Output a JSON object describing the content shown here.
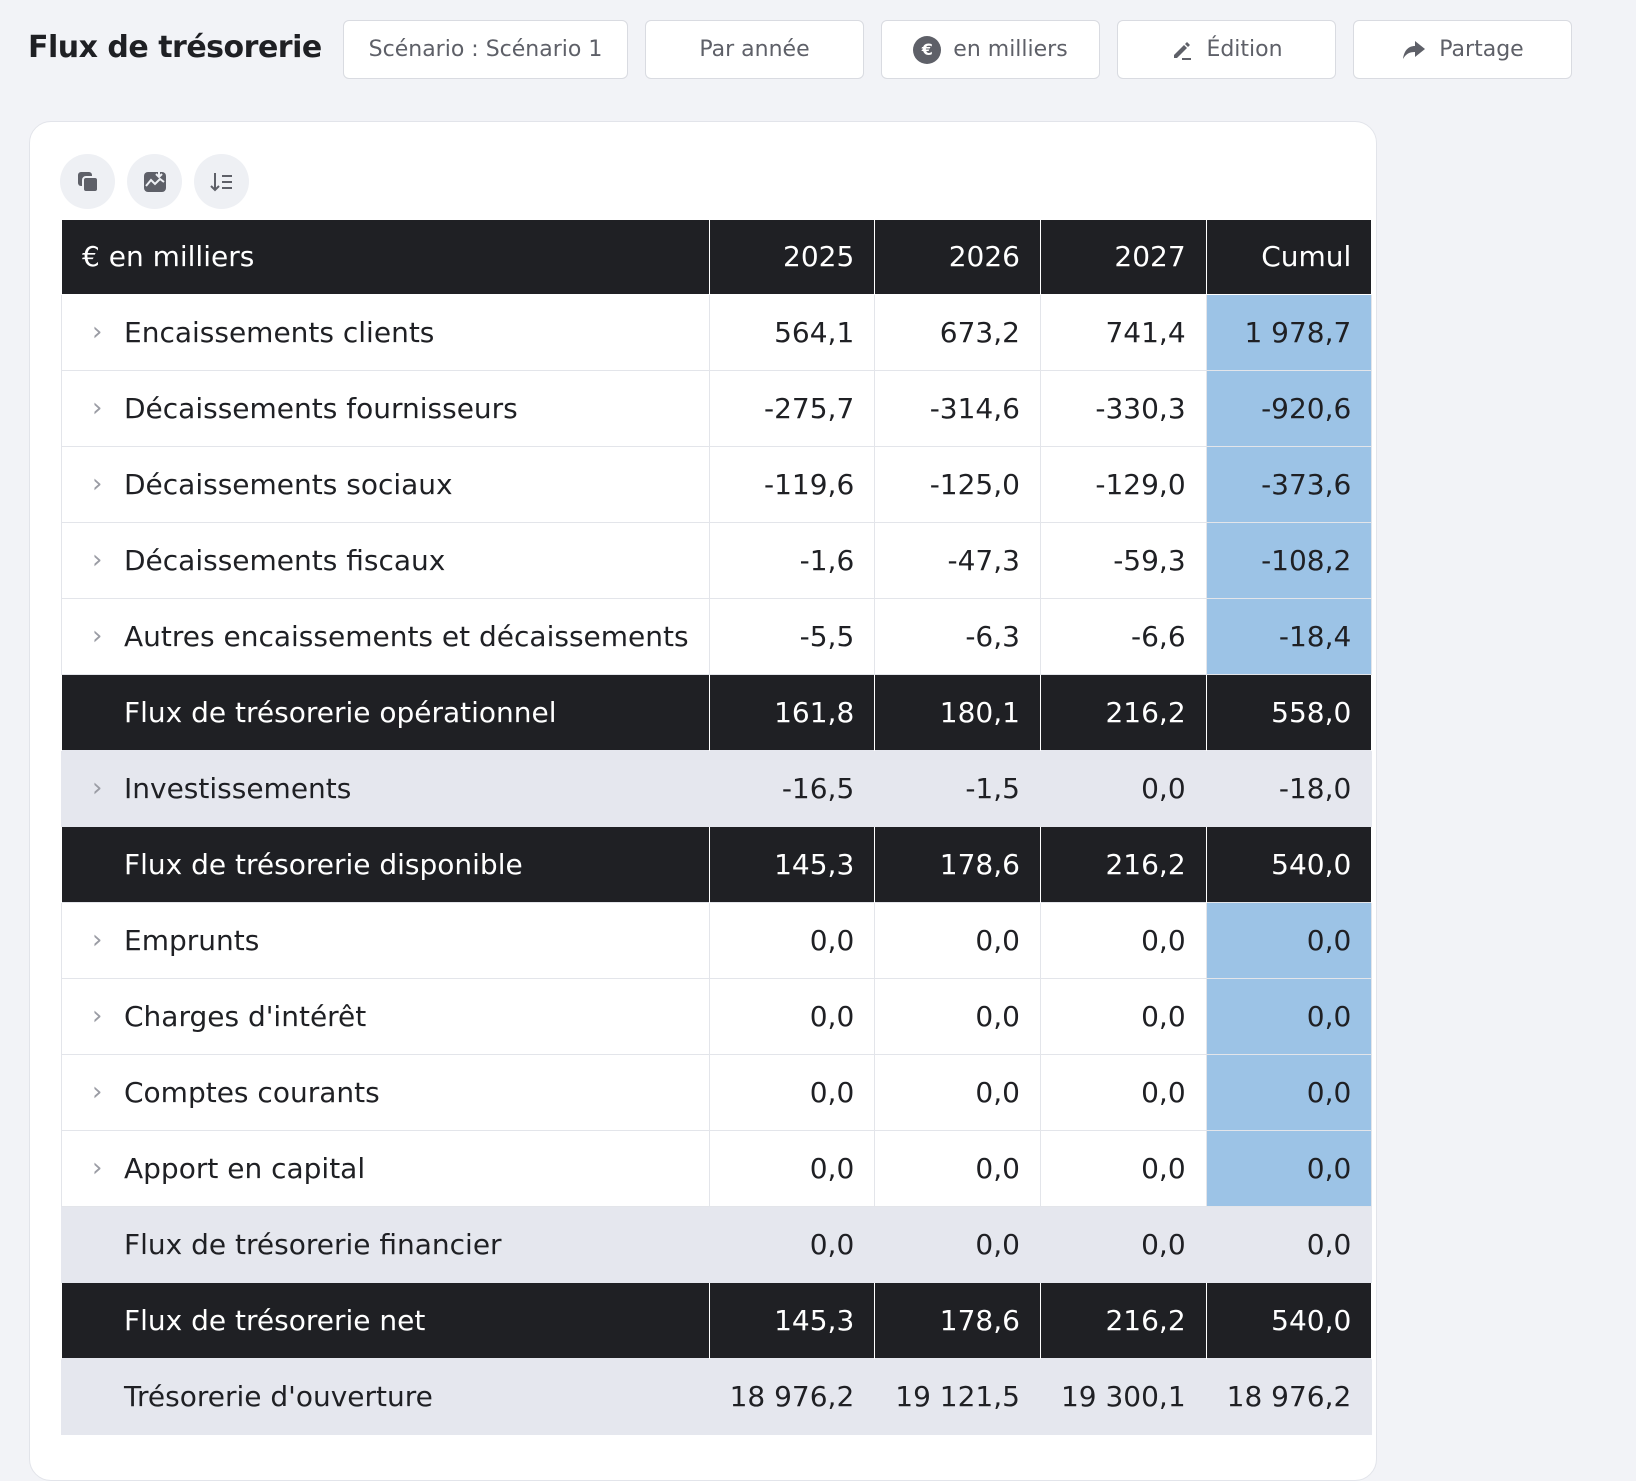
{
  "header": {
    "title": "Flux de trésorerie",
    "scenario_label": "Scénario : Scénario 1",
    "period_label": "Par année",
    "unit_symbol": "€",
    "unit_label": "en milliers",
    "edit_label": "Édition",
    "share_label": "Partage"
  },
  "toolbar": {
    "icons": [
      "copy-icon",
      "chart-download-icon",
      "sort-icon"
    ]
  },
  "table": {
    "corner_label": "€ en milliers",
    "columns": [
      "2025",
      "2026",
      "2027",
      "Cumul"
    ],
    "rows": [
      {
        "label": "Encaissements clients",
        "values": [
          "564,1",
          "673,2",
          "741,4",
          "1 978,7"
        ]
      },
      {
        "label": "Décaissements fournisseurs",
        "values": [
          "-275,7",
          "-314,6",
          "-330,3",
          "-920,6"
        ]
      },
      {
        "label": "Décaissements sociaux",
        "values": [
          "-119,6",
          "-125,0",
          "-129,0",
          "-373,6"
        ]
      },
      {
        "label": "Décaissements fiscaux",
        "values": [
          "-1,6",
          "-47,3",
          "-59,3",
          "-108,2"
        ]
      },
      {
        "label": "Autres encaissements et décaissements",
        "values": [
          "-5,5",
          "-6,3",
          "-6,6",
          "-18,4"
        ]
      },
      {
        "label": "Flux de trésorerie opérationnel",
        "values": [
          "161,8",
          "180,1",
          "216,2",
          "558,0"
        ]
      },
      {
        "label": "Investissements",
        "values": [
          "-16,5",
          "-1,5",
          "0,0",
          "-18,0"
        ]
      },
      {
        "label": "Flux de trésorerie disponible",
        "values": [
          "145,3",
          "178,6",
          "216,2",
          "540,0"
        ]
      },
      {
        "label": "Emprunts",
        "values": [
          "0,0",
          "0,0",
          "0,0",
          "0,0"
        ]
      },
      {
        "label": "Charges d'intérêt",
        "values": [
          "0,0",
          "0,0",
          "0,0",
          "0,0"
        ]
      },
      {
        "label": "Comptes courants",
        "values": [
          "0,0",
          "0,0",
          "0,0",
          "0,0"
        ]
      },
      {
        "label": "Apport en capital",
        "values": [
          "0,0",
          "0,0",
          "0,0",
          "0,0"
        ]
      },
      {
        "label": "Flux de trésorerie financier",
        "values": [
          "0,0",
          "0,0",
          "0,0",
          "0,0"
        ]
      },
      {
        "label": "Flux de trésorerie net",
        "values": [
          "145,3",
          "178,6",
          "216,2",
          "540,0"
        ]
      },
      {
        "label": "Trésorerie d'ouverture",
        "values": [
          "18 976,2",
          "19 121,5",
          "19 300,1",
          "18 976,2"
        ]
      }
    ]
  },
  "colors": {
    "dark_row": "#1f2024",
    "cumul_highlight": "#9cc3e6",
    "subtotal_row": "#e5e7ee",
    "background": "#f2f3f7"
  }
}
